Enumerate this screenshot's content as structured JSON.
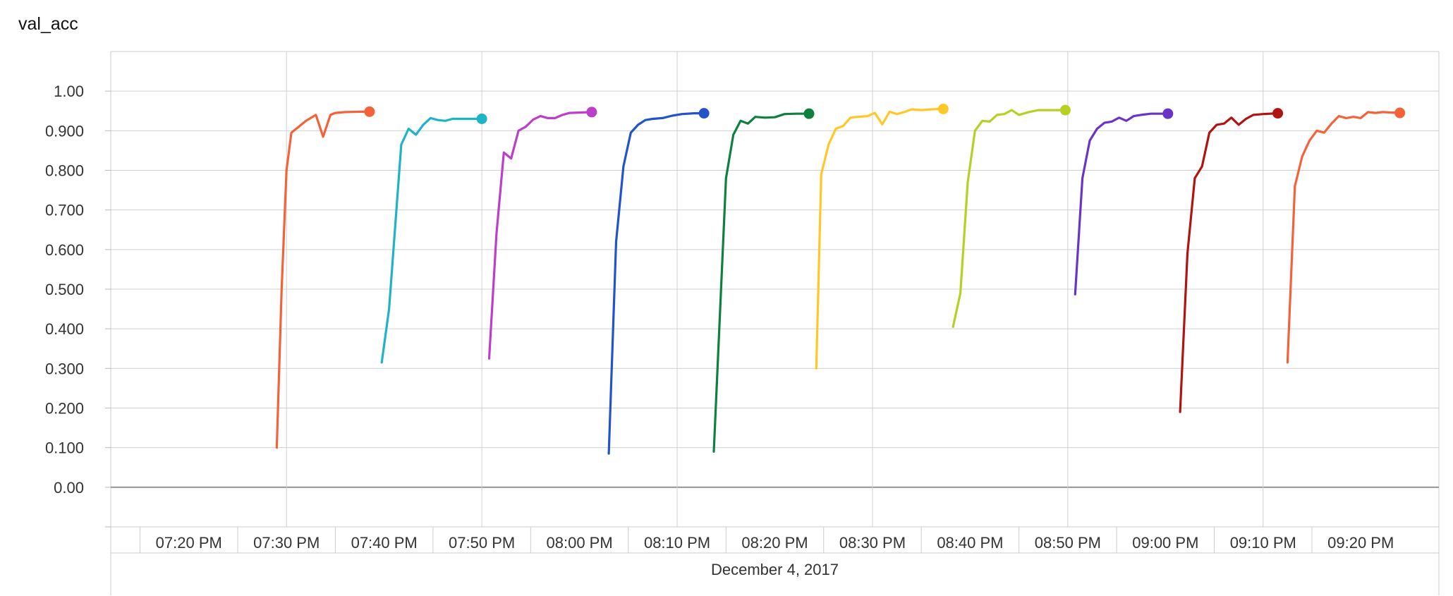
{
  "chart_data": {
    "type": "line",
    "title": "val_acc",
    "xlabel": "December 4, 2017",
    "ylabel": "",
    "ylim": [
      -0.1,
      1.1
    ],
    "y_ticks": [
      {
        "value": 1.0,
        "label": "1.00"
      },
      {
        "value": 0.9,
        "label": "0.900"
      },
      {
        "value": 0.8,
        "label": "0.800"
      },
      {
        "value": 0.7,
        "label": "0.700"
      },
      {
        "value": 0.6,
        "label": "0.600"
      },
      {
        "value": 0.5,
        "label": "0.500"
      },
      {
        "value": 0.4,
        "label": "0.400"
      },
      {
        "value": 0.3,
        "label": "0.300"
      },
      {
        "value": 0.2,
        "label": "0.200"
      },
      {
        "value": 0.1,
        "label": "0.100"
      },
      {
        "value": 0.0,
        "label": "0.00"
      }
    ],
    "x_range": [
      "19:12",
      "21:28"
    ],
    "x_ticks": [
      {
        "time": "19:20",
        "label": "07:20 PM"
      },
      {
        "time": "19:30",
        "label": "07:30 PM"
      },
      {
        "time": "19:40",
        "label": "07:40 PM"
      },
      {
        "time": "19:50",
        "label": "07:50 PM"
      },
      {
        "time": "20:00",
        "label": "08:00 PM"
      },
      {
        "time": "20:10",
        "label": "08:10 PM"
      },
      {
        "time": "20:20",
        "label": "08:20 PM"
      },
      {
        "time": "20:30",
        "label": "08:30 PM"
      },
      {
        "time": "20:40",
        "label": "08:40 PM"
      },
      {
        "time": "20:50",
        "label": "08:50 PM"
      },
      {
        "time": "21:00",
        "label": "09:00 PM"
      },
      {
        "time": "21:10",
        "label": "09:10 PM"
      },
      {
        "time": "21:20",
        "label": "09:20 PM"
      }
    ],
    "grid": true,
    "legend": "none",
    "series": [
      {
        "color": "#f4623a",
        "points": [
          [
            "19:29:00",
            0.1
          ],
          [
            "19:29:30",
            0.5
          ],
          [
            "19:30:00",
            0.8
          ],
          [
            "19:30:30",
            0.895
          ],
          [
            "19:31:00",
            0.905
          ],
          [
            "19:32:00",
            0.925
          ],
          [
            "19:33:00",
            0.94
          ],
          [
            "19:33:45",
            0.885
          ],
          [
            "19:34:30",
            0.94
          ],
          [
            "19:35:00",
            0.945
          ],
          [
            "19:36:00",
            0.947
          ],
          [
            "19:37:30",
            0.948
          ],
          [
            "19:38:30",
            0.948
          ]
        ]
      },
      {
        "color": "#1fb3c6",
        "points": [
          [
            "19:39:45",
            0.315
          ],
          [
            "19:40:30",
            0.45
          ],
          [
            "19:41:15",
            0.7
          ],
          [
            "19:41:45",
            0.865
          ],
          [
            "19:42:30",
            0.905
          ],
          [
            "19:43:15",
            0.89
          ],
          [
            "19:44:00",
            0.915
          ],
          [
            "19:44:45",
            0.932
          ],
          [
            "19:45:30",
            0.927
          ],
          [
            "19:46:15",
            0.925
          ],
          [
            "19:47:00",
            0.93
          ],
          [
            "19:48:30",
            0.93
          ],
          [
            "19:50:00",
            0.93
          ]
        ]
      },
      {
        "color": "#bb3fc9",
        "points": [
          [
            "19:50:45",
            0.325
          ],
          [
            "19:51:30",
            0.64
          ],
          [
            "19:52:15",
            0.845
          ],
          [
            "19:53:00",
            0.83
          ],
          [
            "19:53:45",
            0.9
          ],
          [
            "19:54:30",
            0.91
          ],
          [
            "19:55:15",
            0.928
          ],
          [
            "19:56:00",
            0.937
          ],
          [
            "19:56:45",
            0.932
          ],
          [
            "19:57:30",
            0.932
          ],
          [
            "19:58:15",
            0.94
          ],
          [
            "19:59:00",
            0.945
          ],
          [
            "20:01:15",
            0.947
          ]
        ]
      },
      {
        "color": "#2353cc",
        "points": [
          [
            "20:03:00",
            0.085
          ],
          [
            "20:03:45",
            0.62
          ],
          [
            "20:04:30",
            0.81
          ],
          [
            "20:05:15",
            0.895
          ],
          [
            "20:06:00",
            0.915
          ],
          [
            "20:06:45",
            0.927
          ],
          [
            "20:07:30",
            0.93
          ],
          [
            "20:08:30",
            0.932
          ],
          [
            "20:09:30",
            0.938
          ],
          [
            "20:10:30",
            0.942
          ],
          [
            "20:11:45",
            0.944
          ],
          [
            "20:12:45",
            0.944
          ]
        ]
      },
      {
        "color": "#0e8040",
        "points": [
          [
            "20:13:45",
            0.09
          ],
          [
            "20:15:00",
            0.78
          ],
          [
            "20:15:45",
            0.89
          ],
          [
            "20:16:30",
            0.925
          ],
          [
            "20:17:15",
            0.918
          ],
          [
            "20:18:00",
            0.935
          ],
          [
            "20:19:00",
            0.933
          ],
          [
            "20:20:00",
            0.934
          ],
          [
            "20:21:00",
            0.942
          ],
          [
            "20:22:15",
            0.943
          ],
          [
            "20:23:30",
            0.943
          ]
        ]
      },
      {
        "color": "#ffc728",
        "points": [
          [
            "20:24:15",
            0.3
          ],
          [
            "20:24:45",
            0.79
          ],
          [
            "20:25:30",
            0.865
          ],
          [
            "20:26:15",
            0.905
          ],
          [
            "20:27:00",
            0.912
          ],
          [
            "20:27:45",
            0.933
          ],
          [
            "20:28:30",
            0.935
          ],
          [
            "20:29:30",
            0.937
          ],
          [
            "20:30:15",
            0.945
          ],
          [
            "20:31:00",
            0.916
          ],
          [
            "20:31:45",
            0.948
          ],
          [
            "20:32:30",
            0.942
          ],
          [
            "20:33:15",
            0.947
          ],
          [
            "20:34:00",
            0.954
          ],
          [
            "20:35:00",
            0.952
          ],
          [
            "20:36:00",
            0.954
          ],
          [
            "20:37:15",
            0.955
          ]
        ]
      },
      {
        "color": "#b8cf23",
        "points": [
          [
            "20:38:15",
            0.405
          ],
          [
            "20:39:00",
            0.49
          ],
          [
            "20:39:45",
            0.77
          ],
          [
            "20:40:30",
            0.9
          ],
          [
            "20:41:15",
            0.925
          ],
          [
            "20:42:00",
            0.923
          ],
          [
            "20:42:45",
            0.94
          ],
          [
            "20:43:30",
            0.942
          ],
          [
            "20:44:15",
            0.952
          ],
          [
            "20:45:00",
            0.94
          ],
          [
            "20:46:00",
            0.947
          ],
          [
            "20:47:00",
            0.952
          ],
          [
            "20:49:45",
            0.952
          ]
        ]
      },
      {
        "color": "#6a35c6",
        "points": [
          [
            "20:50:45",
            0.487
          ],
          [
            "20:51:30",
            0.78
          ],
          [
            "20:52:15",
            0.875
          ],
          [
            "20:53:00",
            0.905
          ],
          [
            "20:53:45",
            0.92
          ],
          [
            "20:54:30",
            0.923
          ],
          [
            "20:55:15",
            0.933
          ],
          [
            "20:56:00",
            0.925
          ],
          [
            "20:56:45",
            0.937
          ],
          [
            "20:57:30",
            0.94
          ],
          [
            "20:58:30",
            0.943
          ],
          [
            "20:59:30",
            0.943
          ],
          [
            "21:00:15",
            0.943
          ]
        ]
      },
      {
        "color": "#b01310",
        "points": [
          [
            "21:01:30",
            0.19
          ],
          [
            "21:02:15",
            0.59
          ],
          [
            "21:03:00",
            0.78
          ],
          [
            "21:03:45",
            0.81
          ],
          [
            "21:04:30",
            0.895
          ],
          [
            "21:05:15",
            0.915
          ],
          [
            "21:06:00",
            0.918
          ],
          [
            "21:06:45",
            0.933
          ],
          [
            "21:07:30",
            0.915
          ],
          [
            "21:08:15",
            0.93
          ],
          [
            "21:09:00",
            0.94
          ],
          [
            "21:10:00",
            0.942
          ],
          [
            "21:11:30",
            0.944
          ]
        ]
      },
      {
        "color": "#f4623a",
        "points": [
          [
            "21:12:30",
            0.315
          ],
          [
            "21:13:15",
            0.76
          ],
          [
            "21:14:00",
            0.835
          ],
          [
            "21:14:45",
            0.875
          ],
          [
            "21:15:30",
            0.9
          ],
          [
            "21:16:15",
            0.895
          ],
          [
            "21:17:00",
            0.918
          ],
          [
            "21:17:45",
            0.937
          ],
          [
            "21:18:30",
            0.932
          ],
          [
            "21:19:15",
            0.935
          ],
          [
            "21:20:00",
            0.932
          ],
          [
            "21:20:45",
            0.947
          ],
          [
            "21:21:30",
            0.945
          ],
          [
            "21:22:15",
            0.947
          ],
          [
            "21:24:00",
            0.945
          ]
        ]
      }
    ]
  }
}
